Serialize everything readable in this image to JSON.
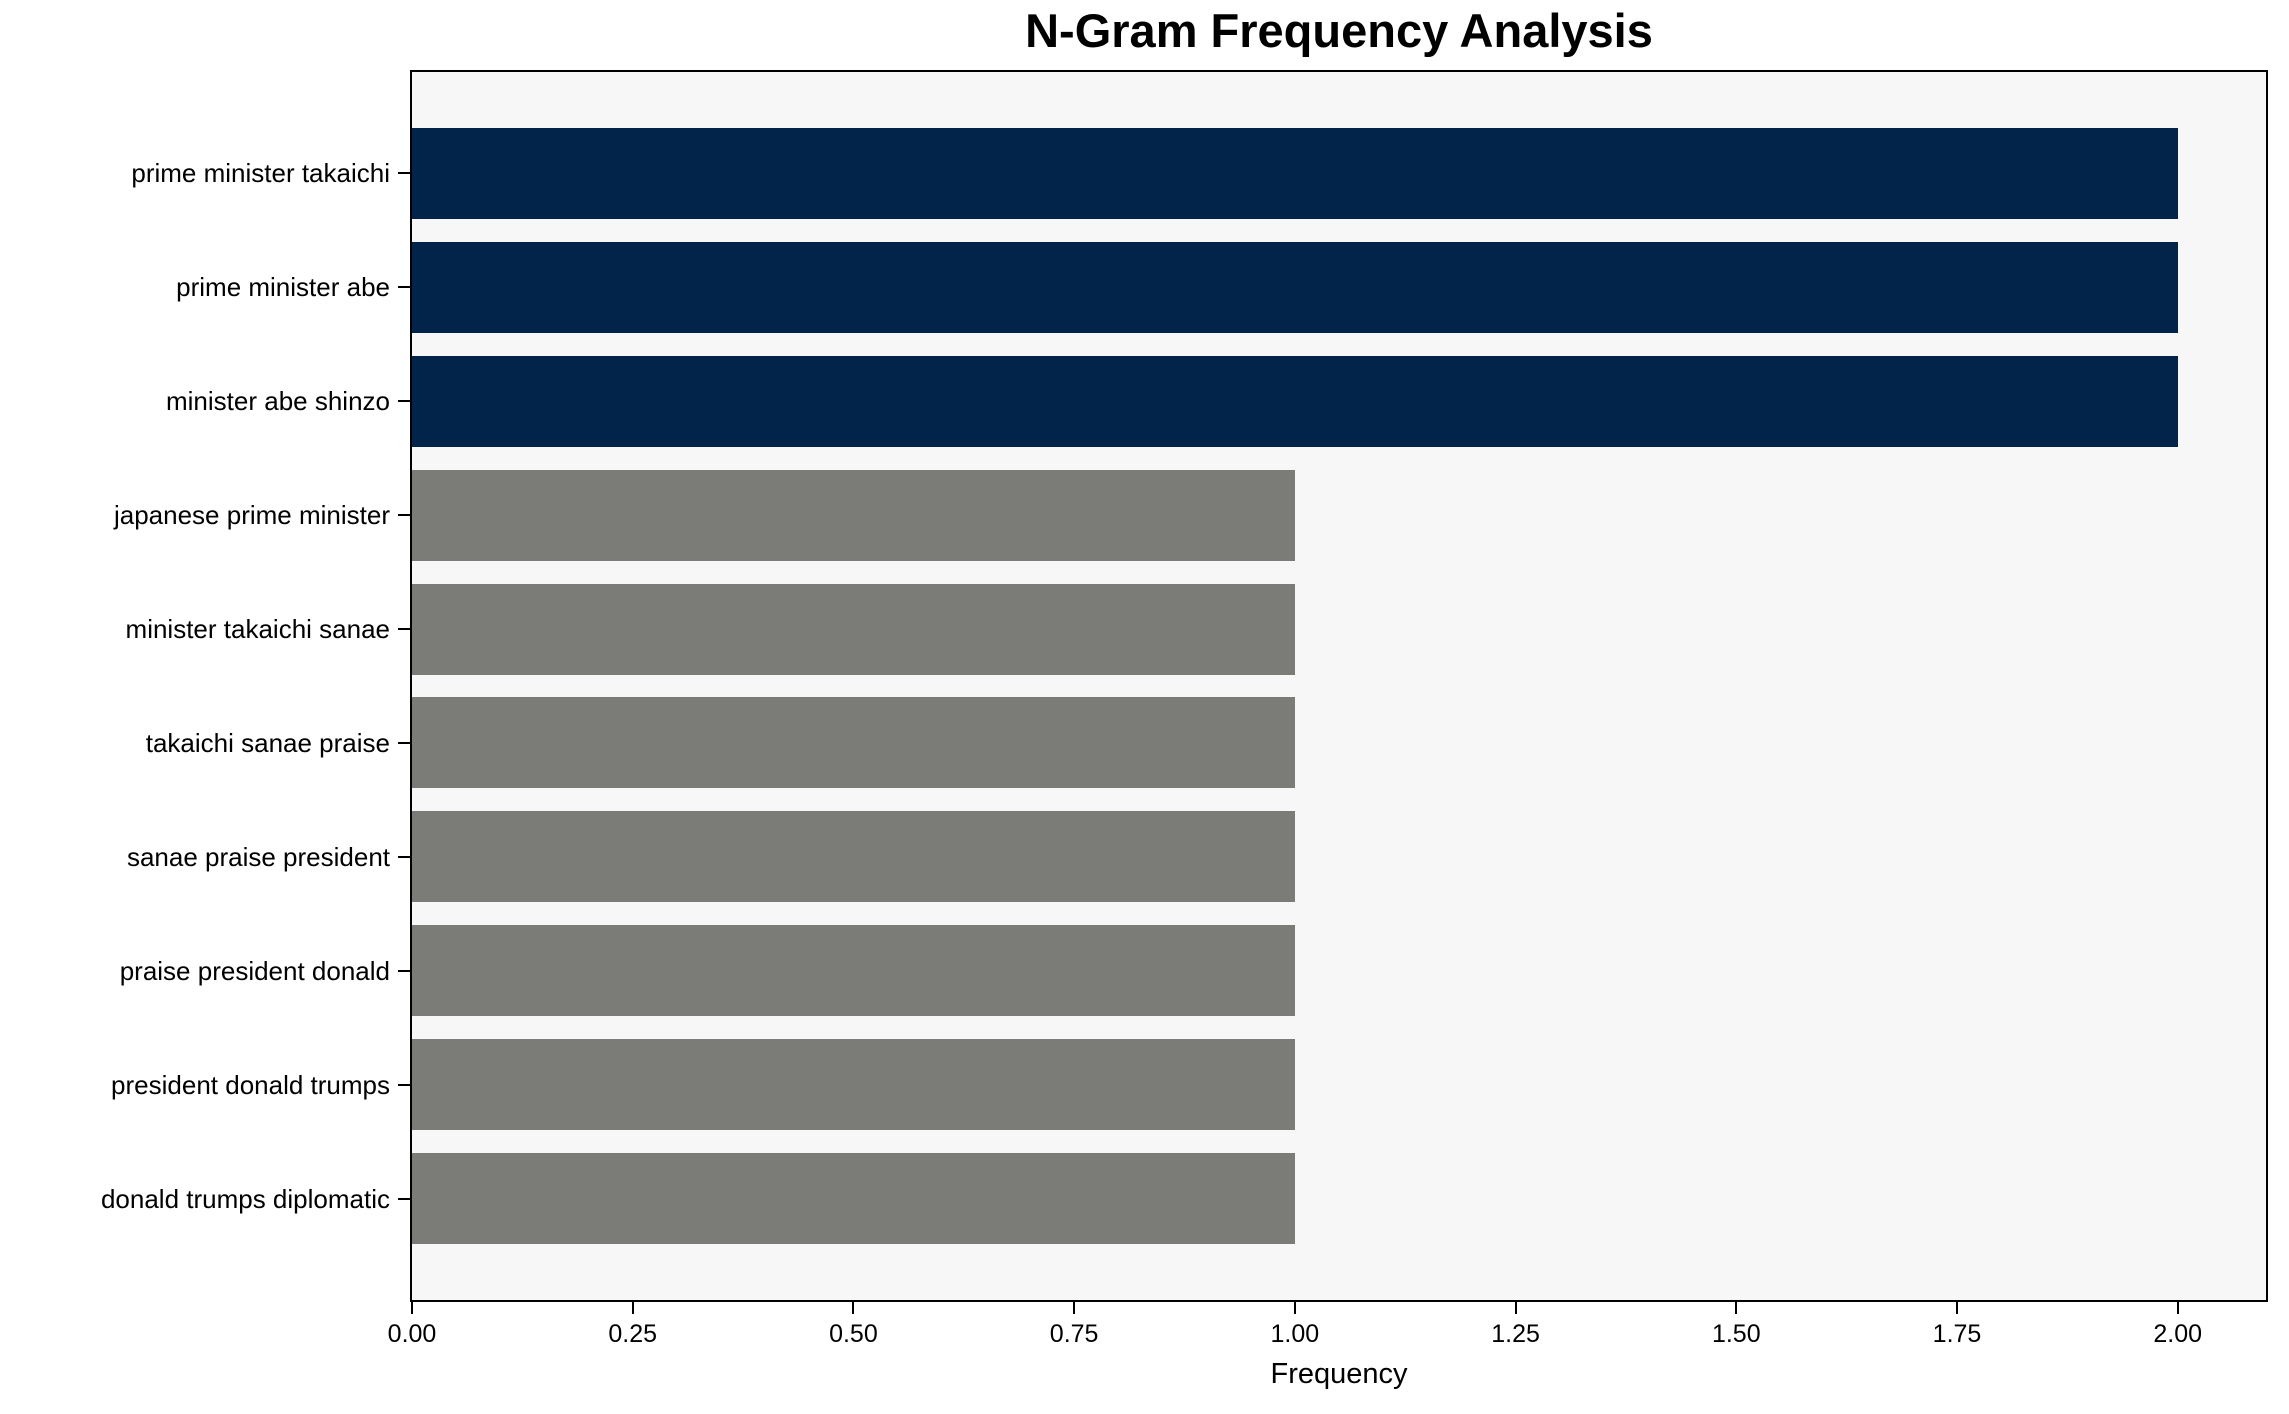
{
  "figure": {
    "background": "#ffffff",
    "plot_background": "#f7f7f7",
    "frame_color": "#000000"
  },
  "chart_data": {
    "type": "bar",
    "orientation": "horizontal",
    "title": "N-Gram Frequency Analysis",
    "xlabel": "Frequency",
    "ylabel": "",
    "categories": [
      "prime minister takaichi",
      "prime minister abe",
      "minister abe shinzo",
      "japanese prime minister",
      "minister takaichi sanae",
      "takaichi sanae praise",
      "sanae praise president",
      "praise president donald",
      "president donald trumps",
      "donald trumps diplomatic"
    ],
    "values": [
      2,
      2,
      2,
      1,
      1,
      1,
      1,
      1,
      1,
      1
    ],
    "bar_colors": [
      "#02234a",
      "#02234a",
      "#02234a",
      "#7b7b78",
      "#7b7b78",
      "#7b7b78",
      "#7b7b78",
      "#7b7b78",
      "#7b7b78",
      "#7b7b78"
    ],
    "highlight_color": "#02234a",
    "default_color": "#7b7b78",
    "xlim": [
      0,
      2.1
    ],
    "xticks": [
      0,
      0.25,
      0.5,
      0.75,
      1.0,
      1.25,
      1.5,
      1.75,
      2.0
    ],
    "xtick_labels": [
      "0.00",
      "0.25",
      "0.50",
      "0.75",
      "1.00",
      "1.25",
      "1.50",
      "1.75",
      "2.00"
    ],
    "grid": false,
    "legend": null
  }
}
